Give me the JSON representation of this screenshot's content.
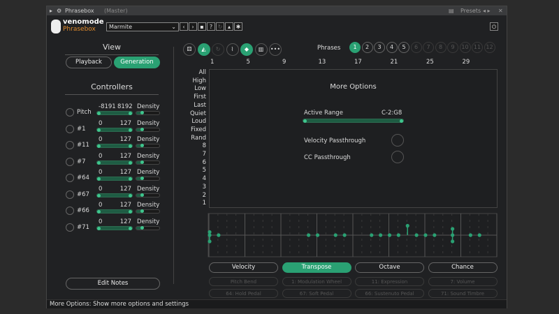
{
  "window": {
    "title": "Phrasebox",
    "title_suffix": "(Master)",
    "presets_label": "Presets"
  },
  "brand": {
    "name": "venomode",
    "product": "Phrasebox"
  },
  "preset": {
    "value": "Marmite"
  },
  "toolbar_icons": [
    "prev-icon",
    "next-icon",
    "save-icon",
    "help-icon",
    "refresh-icon",
    "lock-icon",
    "gear-icon"
  ],
  "view": {
    "heading": "View",
    "tabs": [
      {
        "label": "Playback",
        "active": false
      },
      {
        "label": "Generation",
        "active": true
      }
    ]
  },
  "controllers": {
    "heading": "Controllers",
    "density_label": "Density",
    "items": [
      {
        "name": "Pitch",
        "min": "-8191",
        "max": "8192"
      },
      {
        "name": "#1",
        "min": "0",
        "max": "127"
      },
      {
        "name": "#11",
        "min": "0",
        "max": "127"
      },
      {
        "name": "#7",
        "min": "0",
        "max": "127"
      },
      {
        "name": "#64",
        "min": "0",
        "max": "127"
      },
      {
        "name": "#67",
        "min": "0",
        "max": "127"
      },
      {
        "name": "#66",
        "min": "0",
        "max": "127"
      },
      {
        "name": "#71",
        "min": "0",
        "max": "127"
      }
    ],
    "edit_notes_label": "Edit Notes"
  },
  "mode_icons": [
    {
      "name": "dice-icon",
      "active": false
    },
    {
      "name": "pattern-icon",
      "active": true
    },
    {
      "name": "cycle-icon",
      "active": false,
      "disabled": true
    },
    {
      "name": "pedal-icon",
      "active": false
    },
    {
      "name": "eraser-icon",
      "active": true
    },
    {
      "name": "piano-icon",
      "active": false
    },
    {
      "name": "more-icon",
      "active": false
    }
  ],
  "phrases": {
    "label": "Phrases",
    "items": [
      "1",
      "2",
      "3",
      "4",
      "5",
      "6",
      "7",
      "8",
      "9",
      "10",
      "11",
      "12"
    ],
    "active": "1",
    "enabled_count": 5
  },
  "beat_ruler": [
    "1",
    "5",
    "9",
    "13",
    "17",
    "21",
    "25",
    "29"
  ],
  "row_labels": [
    "All",
    "High",
    "Low",
    "First",
    "Last",
    "Quiet",
    "Loud",
    "Fixed",
    "Rand",
    "8",
    "7",
    "6",
    "5",
    "4",
    "3",
    "2",
    "1"
  ],
  "more_options": {
    "title": "More Options",
    "active_range_label": "Active Range",
    "active_range_value": "C-2:G8",
    "velocity_passthrough": "Velocity Passthrough",
    "cc_passthrough": "CC Passthrough"
  },
  "transpose_steps": [
    {
      "step": 0,
      "values": [
        1,
        0,
        -2
      ]
    },
    {
      "step": 1,
      "values": [
        0
      ]
    },
    {
      "step": 11,
      "values": [
        0
      ]
    },
    {
      "step": 12,
      "values": [
        0
      ]
    },
    {
      "step": 14,
      "values": [
        0
      ]
    },
    {
      "step": 15,
      "values": [
        0
      ]
    },
    {
      "step": 18,
      "values": [
        0
      ]
    },
    {
      "step": 19,
      "values": [
        0
      ]
    },
    {
      "step": 20,
      "values": [
        0
      ]
    },
    {
      "step": 21,
      "values": [
        0
      ]
    },
    {
      "step": 22,
      "values": [
        3
      ]
    },
    {
      "step": 23,
      "values": [
        0
      ]
    },
    {
      "step": 24,
      "values": [
        0
      ]
    },
    {
      "step": 25,
      "values": [
        0
      ]
    },
    {
      "step": 27,
      "values": [
        2,
        0,
        -2
      ]
    },
    {
      "step": 29,
      "values": [
        0
      ]
    },
    {
      "step": 30,
      "values": [
        0
      ]
    }
  ],
  "lanes": [
    {
      "label": "Velocity",
      "active": false
    },
    {
      "label": "Transpose",
      "active": true
    },
    {
      "label": "Octave",
      "active": false
    },
    {
      "label": "Chance",
      "active": false
    }
  ],
  "cc_lanes": [
    "Pitch Bend",
    "1: Modulation Wheel",
    "11: Expression",
    "7: Volume",
    "64: Hold Pedal",
    "67: Soft Pedal",
    "66: Sustenuto Pedal",
    "71: Sound Timbre"
  ],
  "status": "More Options: Show more options and settings",
  "colors": {
    "accent": "#2aa173",
    "background": "#202123"
  }
}
